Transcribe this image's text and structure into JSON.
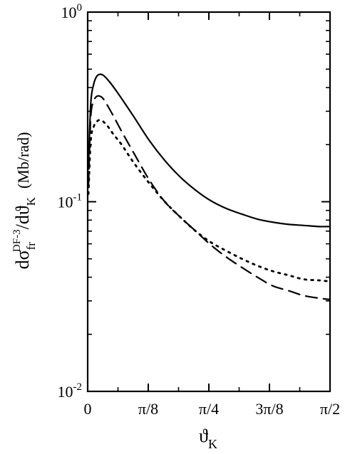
{
  "chart_data": {
    "type": "line",
    "title": "",
    "xlabel": {
      "base": "ϑ",
      "sub": "K"
    },
    "ylabel": {
      "d1": "dσ",
      "sub1": "fr",
      "sup1": "DF-3",
      "d2": "/dϑ",
      "sub2": "K",
      "unit": "(Mb/rad)"
    },
    "xlim": [
      0,
      1.5708
    ],
    "ylim": [
      0.01,
      1
    ],
    "yscale": "log",
    "grid": false,
    "legend": "none",
    "x_ticks": [
      {
        "value": 0,
        "label": "0"
      },
      {
        "value": 0.3927,
        "label": "π/8"
      },
      {
        "value": 0.7854,
        "label": "π/4"
      },
      {
        "value": 1.1781,
        "label": "3π/8"
      },
      {
        "value": 1.5708,
        "label": "π/2"
      }
    ],
    "y_ticks": [
      {
        "value": 1,
        "base": "10",
        "exp": "0"
      },
      {
        "value": 0.1,
        "base": "10",
        "exp": "-1"
      },
      {
        "value": 0.01,
        "base": "10",
        "exp": "-2"
      }
    ],
    "series": [
      {
        "style": "solid",
        "x": [
          0.005,
          0.02,
          0.04,
          0.06,
          0.08,
          0.1,
          0.13,
          0.17,
          0.22,
          0.3,
          0.4,
          0.5,
          0.6,
          0.7,
          0.8,
          0.9,
          1.0,
          1.1,
          1.2,
          1.3,
          1.4,
          1.5,
          1.5708
        ],
        "y": [
          0.15,
          0.33,
          0.42,
          0.46,
          0.47,
          0.465,
          0.44,
          0.4,
          0.35,
          0.28,
          0.21,
          0.165,
          0.135,
          0.115,
          0.101,
          0.092,
          0.086,
          0.081,
          0.078,
          0.076,
          0.075,
          0.074,
          0.074
        ]
      },
      {
        "style": "dashed",
        "x": [
          0.005,
          0.02,
          0.04,
          0.06,
          0.08,
          0.1,
          0.13,
          0.17,
          0.22,
          0.3,
          0.4,
          0.5,
          0.6,
          0.7,
          0.8,
          0.9,
          1.0,
          1.1,
          1.2,
          1.3,
          1.4,
          1.5,
          1.5708
        ],
        "y": [
          0.12,
          0.28,
          0.34,
          0.36,
          0.36,
          0.35,
          0.32,
          0.28,
          0.235,
          0.18,
          0.13,
          0.1,
          0.083,
          0.07,
          0.059,
          0.051,
          0.045,
          0.04,
          0.036,
          0.034,
          0.032,
          0.031,
          0.0305
        ]
      },
      {
        "style": "dotted",
        "x": [
          0.005,
          0.02,
          0.04,
          0.06,
          0.08,
          0.1,
          0.13,
          0.17,
          0.22,
          0.3,
          0.4,
          0.5,
          0.6,
          0.7,
          0.8,
          0.9,
          1.0,
          1.1,
          1.2,
          1.3,
          1.4,
          1.5,
          1.5708
        ],
        "y": [
          0.11,
          0.21,
          0.25,
          0.265,
          0.27,
          0.265,
          0.25,
          0.225,
          0.2,
          0.16,
          0.125,
          0.1,
          0.083,
          0.07,
          0.061,
          0.055,
          0.05,
          0.046,
          0.043,
          0.041,
          0.039,
          0.0385,
          0.038
        ]
      }
    ]
  }
}
